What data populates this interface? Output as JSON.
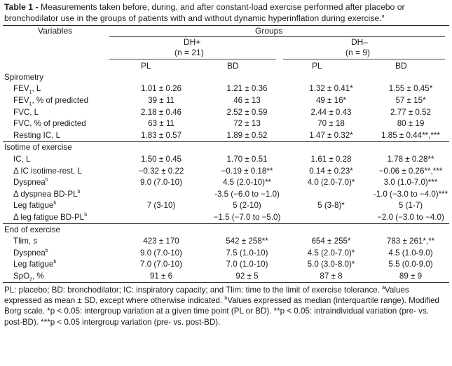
{
  "caption": {
    "label": "Table 1 -",
    "text": "Measurements taken before, during, and after constant-load exercise performed after placebo or bronchodilator use in the groups of patients with and without dynamic hyperinflation during exercise.",
    "mark": "a"
  },
  "header": {
    "variables": "Variables",
    "groups": "Groups",
    "dh_plus": "DH+",
    "dh_plus_n": "(n = 21)",
    "dh_minus": "DH–",
    "dh_minus_n": "(n = 9)",
    "pl1": "PL",
    "bd1": "BD",
    "pl2": "PL",
    "bd2": "BD"
  },
  "sections": [
    {
      "title": "Spirometry",
      "rows": [
        {
          "pre": "FEV",
          "sub": "1",
          "post": ", L",
          "supmark": "",
          "v": [
            "1.01 ± 0.26",
            "1.21 ± 0.36",
            "1.32 ± 0.41*",
            "1.55 ± 0.45*"
          ]
        },
        {
          "pre": "FEV",
          "sub": "1",
          "post": ", % of predicted",
          "supmark": "",
          "v": [
            "39 ± 11",
            "46 ± 13",
            "49 ± 16*",
            "57 ± 15*"
          ]
        },
        {
          "pre": "FVC, L",
          "sub": "",
          "post": "",
          "supmark": "",
          "v": [
            "2.18 ± 0.46",
            "2.52 ± 0.59",
            "2.44 ± 0.43",
            "2.77 ± 0.52"
          ]
        },
        {
          "pre": "FVC, % of predicted",
          "sub": "",
          "post": "",
          "supmark": "",
          "v": [
            "63 ± 11",
            "72 ± 13",
            "70 ± 18",
            "80 ± 19"
          ]
        },
        {
          "pre": "Resting IC, L",
          "sub": "",
          "post": "",
          "supmark": "",
          "v": [
            "1.83 ± 0.57",
            "1.89 ± 0.52",
            "1.47 ± 0.32*",
            "1.85 ± 0.44**,***"
          ]
        }
      ]
    },
    {
      "title": "Isotime of exercise",
      "rows": [
        {
          "pre": "IC, L",
          "sub": "",
          "post": "",
          "supmark": "",
          "v": [
            "1.50 ± 0.45",
            "1.70 ± 0.51",
            "1.61 ± 0.28",
            "1.78 ± 0.28**"
          ]
        },
        {
          "pre": "Δ IC isotime-rest, L",
          "sub": "",
          "post": "",
          "supmark": "",
          "v": [
            "−0.32 ± 0.22",
            "−0.19 ± 0.18**",
            "0.14 ± 0.23*",
            "−0.06 ± 0.26**,***"
          ]
        },
        {
          "pre": "Dyspnea",
          "sub": "",
          "post": "",
          "supmark": "b",
          "v": [
            "9.0 (7.0-10)",
            "4.5 (2.0-10)**",
            "4.0 (2.0-7.0)*",
            "3.0 (1.0-7.0)***"
          ]
        },
        {
          "pre": "Δ dyspnea BD-PL",
          "sub": "",
          "post": "",
          "supmark": "b",
          "v": [
            "",
            "-3.5 (−6.0 to −1.0)",
            "",
            "-1.0 (−3.0 to −4.0)***"
          ]
        },
        {
          "pre": "Leg fatigue",
          "sub": "",
          "post": "",
          "supmark": "b",
          "v": [
            "7 (3-10)",
            "5 (2-10)",
            "5 (3-8)*",
            "5 (1-7)"
          ]
        },
        {
          "pre": "Δ leg fatigue BD-PL",
          "sub": "",
          "post": "",
          "supmark": "b",
          "v": [
            "",
            "−1.5 (−7.0 to −5.0)",
            "",
            "−2.0 (−3.0 to −4.0)"
          ]
        }
      ]
    },
    {
      "title": "End of exercise",
      "rows": [
        {
          "pre": "Tlim, s",
          "sub": "",
          "post": "",
          "supmark": "",
          "v": [
            "423 ± 170",
            "542 ± 258**",
            "654 ± 255*",
            "783 ± 261*,**"
          ]
        },
        {
          "pre": "Dyspnea",
          "sub": "",
          "post": "",
          "supmark": "b",
          "v": [
            "9.0 (7.0-10)",
            "7.5 (1.0-10)",
            "4.5 (2.0-7.0)*",
            "4.5 (1.0-9.0)"
          ]
        },
        {
          "pre": "Leg fatigue",
          "sub": "",
          "post": "",
          "supmark": "b",
          "v": [
            "7.0 (7.0-10)",
            "7.0 (1.0-10)",
            "5.0 (3.0-8.0)*",
            "5.5 (0.0-9.0)"
          ]
        },
        {
          "pre": "SpO",
          "sub": "2",
          "post": ", %",
          "supmark": "",
          "v": [
            "91 ± 6",
            "92 ± 5",
            "87 ± 8",
            "89 ± 9"
          ]
        }
      ]
    }
  ],
  "footnote": {
    "p1": "PL: placebo; BD: bronchodilator; IC: inspiratory capacity; and Tlim: time to the limit of exercise tolerance.",
    "m1": "a",
    "p2": "Values expressed as mean ± SD, except where otherwise indicated.",
    "m2": "b",
    "p3": "Values expressed as median (interquartile range). Modified Borg scale. *p < 0.05: intergroup variation at a given time point (PL or BD). **p < 0.05: intraindividual variation (pre- vs. post-BD). ***p < 0.05 intergroup variation (pre- vs. post-BD)."
  }
}
